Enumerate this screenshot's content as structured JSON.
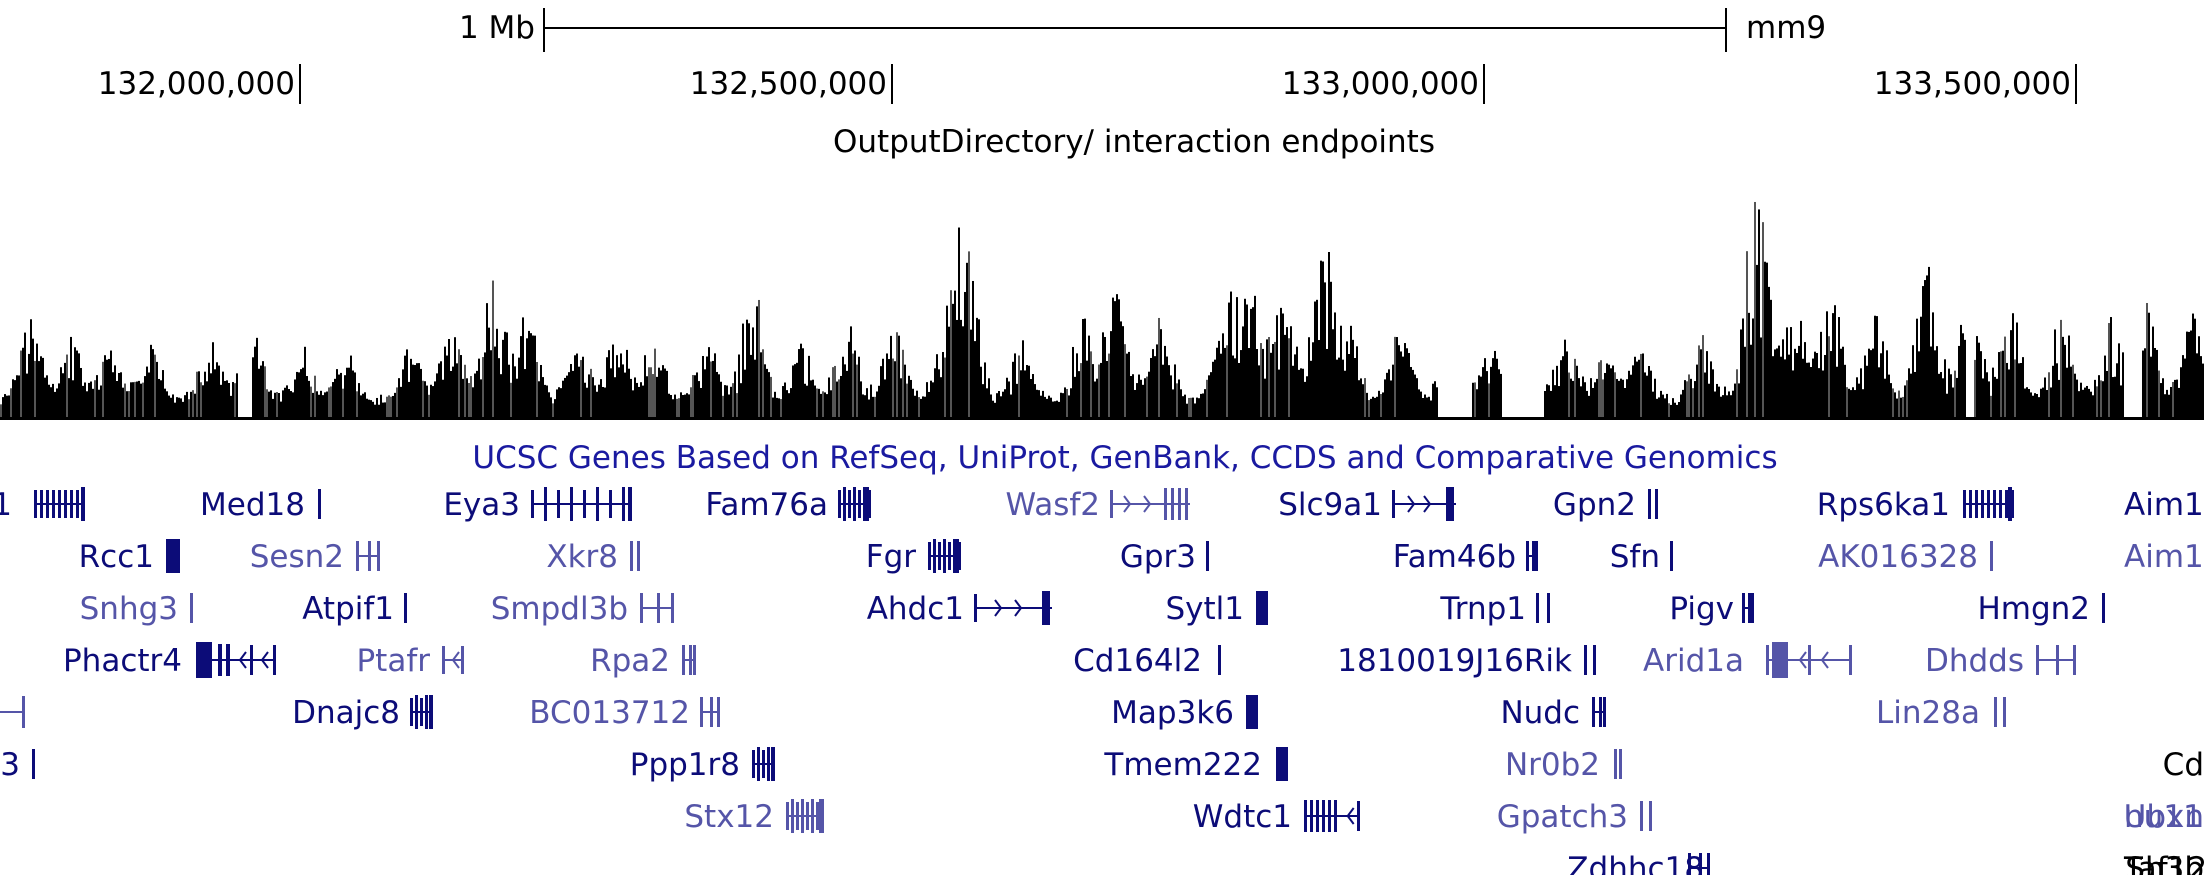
{
  "scale_bar": {
    "label": "1 Mb",
    "assembly": "mm9"
  },
  "coordinates": [
    {
      "label": "132,000,000",
      "pos": 132000000
    },
    {
      "label": "132,500,000",
      "pos": 132500000
    },
    {
      "label": "133,000,000",
      "pos": 133000000
    },
    {
      "label": "133,500,000",
      "pos": 133500000
    }
  ],
  "signal_track": {
    "title": "OutputDirectory/ interaction endpoints"
  },
  "genes_track": {
    "title": "UCSC Genes Based on RefSeq, UniProt, GenBank, CCDS and Comparative Genomics"
  },
  "genes": [
    {
      "name": "1",
      "color": "#0c0c78",
      "row": 0
    },
    {
      "name": "Med18",
      "color": "#0c0c78",
      "row": 0
    },
    {
      "name": "Eya3",
      "color": "#0c0c78",
      "row": 0
    },
    {
      "name": "Fam76a",
      "color": "#0c0c78",
      "row": 0
    },
    {
      "name": "Wasf2",
      "color": "#5555a8",
      "row": 0
    },
    {
      "name": "Slc9a1",
      "color": "#0c0c78",
      "row": 0
    },
    {
      "name": "Gpn2",
      "color": "#0c0c78",
      "row": 0
    },
    {
      "name": "Rps6ka1",
      "color": "#0c0c78",
      "row": 0
    },
    {
      "name": "Aim1",
      "color": "#0c0c78",
      "row": 0
    },
    {
      "name": "Rcc1",
      "color": "#0c0c78",
      "row": 1
    },
    {
      "name": "Sesn2",
      "color": "#5555a8",
      "row": 1
    },
    {
      "name": "Xkr8",
      "color": "#5555a8",
      "row": 1
    },
    {
      "name": "Fgr",
      "color": "#0c0c78",
      "row": 1
    },
    {
      "name": "Gpr3",
      "color": "#0c0c78",
      "row": 1
    },
    {
      "name": "Fam46b",
      "color": "#0c0c78",
      "row": 1
    },
    {
      "name": "Sfn",
      "color": "#0c0c78",
      "row": 1
    },
    {
      "name": "AK016328",
      "color": "#5555a8",
      "row": 1
    },
    {
      "name": "Aim1",
      "color": "#5555a8",
      "row": 1
    },
    {
      "name": "Snhg3",
      "color": "#5555a8",
      "row": 2
    },
    {
      "name": "Atpif1",
      "color": "#0c0c78",
      "row": 2
    },
    {
      "name": "Smpdl3b",
      "color": "#5555a8",
      "row": 2
    },
    {
      "name": "Ahdc1",
      "color": "#0c0c78",
      "row": 2
    },
    {
      "name": "Sytl1",
      "color": "#0c0c78",
      "row": 2
    },
    {
      "name": "Trnp1",
      "color": "#0c0c78",
      "row": 2
    },
    {
      "name": "Pigv",
      "color": "#0c0c78",
      "row": 2
    },
    {
      "name": "Hmgn2",
      "color": "#0c0c78",
      "row": 2
    },
    {
      "name": "Phactr4",
      "color": "#0c0c78",
      "row": 3
    },
    {
      "name": "Ptafr",
      "color": "#5555a8",
      "row": 3
    },
    {
      "name": "Rpa2",
      "color": "#5555a8",
      "row": 3
    },
    {
      "name": "Cd164l2",
      "color": "#0c0c78",
      "row": 3
    },
    {
      "name": "1810019J16Rik",
      "color": "#0c0c78",
      "row": 3
    },
    {
      "name": "Arid1a",
      "color": "#5555a8",
      "row": 3
    },
    {
      "name": "Dhdds",
      "color": "#5555a8",
      "row": 3
    },
    {
      "name": "Dnajc8",
      "color": "#0c0c78",
      "row": 4
    },
    {
      "name": "BC013712",
      "color": "#5555a8",
      "row": 4
    },
    {
      "name": "Map3k6",
      "color": "#0c0c78",
      "row": 4
    },
    {
      "name": "Nudc",
      "color": "#0c0c78",
      "row": 4
    },
    {
      "name": "Lin28a",
      "color": "#5555a8",
      "row": 4
    },
    {
      "name": "3",
      "color": "#0c0c78",
      "row": 5
    },
    {
      "name": "Ppp1r8",
      "color": "#0c0c78",
      "row": 5
    },
    {
      "name": "Tmem222",
      "color": "#0c0c78",
      "row": 5
    },
    {
      "name": "Nr0b2",
      "color": "#5555a8",
      "row": 5
    },
    {
      "name": "Cd",
      "color": "#000000",
      "row": 5
    },
    {
      "name": "nu11",
      "color": "#5555a8",
      "row": 6
    },
    {
      "name": "Stx12",
      "color": "#5555a8",
      "row": 6
    },
    {
      "name": "Wdtc1",
      "color": "#0c0c78",
      "row": 6
    },
    {
      "name": "Gpatch3",
      "color": "#5555a8",
      "row": 6
    },
    {
      "name": "Ubxn",
      "color": "#5555a8",
      "row": 6
    },
    {
      "name": "Taf12",
      "color": "#000000",
      "row": 7
    },
    {
      "name": "Zdhhc18",
      "color": "#0c0c78",
      "row": 7
    },
    {
      "name": "Sh3b",
      "color": "#000000",
      "row": 7
    }
  ]
}
